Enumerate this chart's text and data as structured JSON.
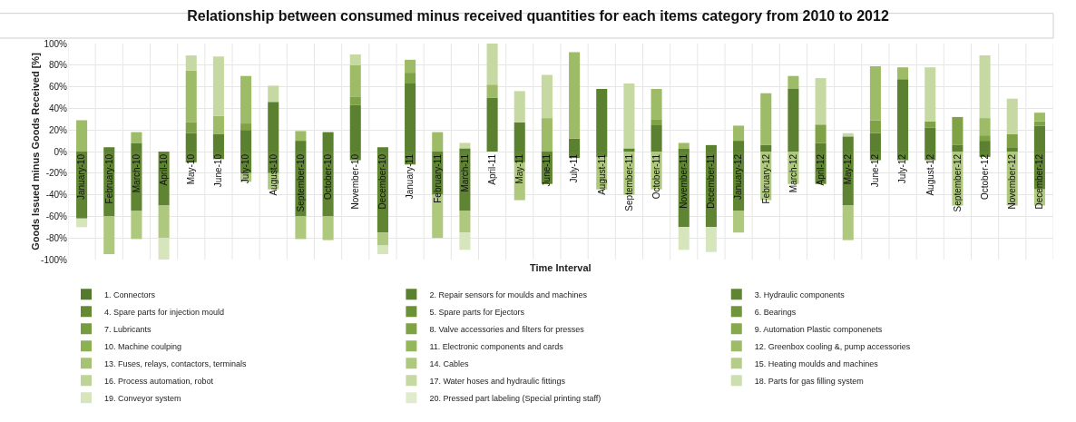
{
  "chart_data": {
    "type": "bar",
    "stacked": true,
    "title": "Relationship between consumed minus received quantities for each items category from 2010 to 2012",
    "xlabel": "Time Interval",
    "ylabel": "Goods Issued minus Goods Received [%]",
    "categories": [
      "January-10",
      "February-10",
      "March-10",
      "April-10",
      "May-10",
      "June-10",
      "July-10",
      "August-10",
      "September-10",
      "October-10",
      "November-10",
      "December-10",
      "January-11",
      "February-11",
      "March-11",
      "April-11",
      "May-11",
      "June-11",
      "July-11",
      "August-11",
      "September-11",
      "October-11",
      "November-11",
      "December-11",
      "January-12",
      "February-12",
      "March-12",
      "April-12",
      "May-12",
      "June-12",
      "July-12",
      "August-12",
      "September-12",
      "October-12",
      "November-12",
      "December-12"
    ],
    "ylim": [
      -100,
      100
    ],
    "yticks": [
      {
        "value": -100,
        "label": "-100%"
      },
      {
        "value": -80,
        "label": "-80%"
      },
      {
        "value": -60,
        "label": "-60%"
      },
      {
        "value": -40,
        "label": "-40%"
      },
      {
        "value": -20,
        "label": "-20%"
      },
      {
        "value": 0,
        "label": "0%"
      },
      {
        "value": 20,
        "label": "20%"
      },
      {
        "value": 40,
        "label": "40%"
      },
      {
        "value": 60,
        "label": "60%"
      },
      {
        "value": 80,
        "label": "80%"
      },
      {
        "value": 100,
        "label": "100%"
      }
    ],
    "grid": true,
    "legend": "bottom",
    "series": [
      {
        "name": "1. Connectors",
        "color": "#557a2e",
        "values": [
          null,
          null,
          null,
          null,
          null,
          null,
          null,
          null,
          null,
          null,
          null,
          null,
          null,
          null,
          null,
          null,
          null,
          null,
          null,
          null,
          null,
          null,
          null,
          null,
          null,
          null,
          null,
          null,
          null,
          null,
          null,
          null,
          null,
          null,
          null,
          null
        ]
      },
      {
        "name": "2. Repair sensors for moulds and machines",
        "color": "#5a8030",
        "values": [
          null,
          4,
          8,
          null,
          17,
          16,
          20,
          46,
          10,
          18,
          43,
          4,
          63,
          null,
          3,
          50,
          27,
          null,
          12,
          58,
          3,
          25,
          3,
          6,
          10,
          6,
          58,
          8,
          14,
          17,
          67,
          22,
          6,
          10,
          4,
          24
        ]
      },
      {
        "name": "3. Hydraulic components",
        "color": "#5f8532",
        "values": [
          -62,
          -60,
          -55,
          -50,
          -10,
          -7,
          -20,
          -20,
          -60,
          -60,
          -8,
          -75,
          -12,
          -40,
          -55,
          null,
          -10,
          -30,
          -6,
          -5,
          null,
          null,
          -70,
          -70,
          -55,
          null,
          null,
          -30,
          -50,
          -8,
          -8,
          -8,
          null,
          -5,
          null,
          -35
        ]
      },
      {
        "name": "4. Spare parts for injection mould",
        "color": "#648a35",
        "values": [
          null,
          null,
          null,
          null,
          null,
          null,
          null,
          null,
          null,
          null,
          null,
          null,
          null,
          null,
          null,
          null,
          null,
          null,
          null,
          null,
          null,
          null,
          null,
          null,
          null,
          null,
          null,
          null,
          null,
          null,
          null,
          null,
          null,
          null,
          null,
          null
        ]
      },
      {
        "name": "5. Spare parts for Ejectors",
        "color": "#6a9038",
        "values": [
          null,
          null,
          null,
          null,
          null,
          null,
          null,
          null,
          null,
          null,
          null,
          null,
          null,
          null,
          null,
          null,
          null,
          null,
          null,
          null,
          null,
          null,
          null,
          null,
          null,
          null,
          null,
          null,
          null,
          null,
          null,
          null,
          null,
          null,
          null,
          null
        ]
      },
      {
        "name": "6. Bearings",
        "color": "#70953c",
        "values": [
          null,
          null,
          null,
          null,
          null,
          null,
          null,
          null,
          null,
          null,
          null,
          null,
          null,
          null,
          null,
          null,
          null,
          null,
          null,
          null,
          null,
          null,
          null,
          null,
          null,
          null,
          null,
          null,
          null,
          null,
          null,
          null,
          null,
          null,
          null,
          null
        ]
      },
      {
        "name": "7. Lubricants",
        "color": "#779b40",
        "values": [
          null,
          null,
          null,
          null,
          null,
          null,
          null,
          null,
          null,
          null,
          null,
          null,
          null,
          null,
          null,
          null,
          null,
          null,
          null,
          null,
          null,
          null,
          null,
          null,
          null,
          null,
          null,
          null,
          null,
          null,
          null,
          null,
          null,
          null,
          null,
          null
        ]
      },
      {
        "name": "8. Valve accessories and filters for presses",
        "color": "#7ea245",
        "values": [
          null,
          null,
          null,
          null,
          10,
          null,
          6,
          null,
          null,
          null,
          8,
          null,
          10,
          null,
          null,
          null,
          null,
          null,
          null,
          null,
          null,
          5,
          null,
          null,
          null,
          null,
          null,
          17,
          null,
          12,
          null,
          6,
          26,
          5,
          12,
          4
        ]
      },
      {
        "name": "9. Automation Plastic componenets",
        "color": "#86a94c",
        "values": [
          null,
          null,
          null,
          null,
          null,
          null,
          null,
          null,
          null,
          null,
          null,
          null,
          null,
          null,
          null,
          null,
          null,
          null,
          null,
          null,
          null,
          null,
          null,
          null,
          null,
          null,
          null,
          null,
          null,
          null,
          null,
          null,
          null,
          null,
          null,
          null
        ]
      },
      {
        "name": "10. Machine coulping",
        "color": "#8eb054",
        "values": [
          null,
          null,
          null,
          null,
          null,
          null,
          null,
          null,
          null,
          null,
          null,
          null,
          null,
          null,
          null,
          null,
          null,
          null,
          null,
          null,
          null,
          null,
          null,
          null,
          null,
          null,
          null,
          null,
          null,
          null,
          null,
          null,
          null,
          null,
          null,
          null
        ]
      },
      {
        "name": "11. Electronic components and cards",
        "color": "#96b65d",
        "values": [
          null,
          null,
          null,
          null,
          null,
          null,
          null,
          null,
          null,
          null,
          null,
          null,
          null,
          null,
          null,
          null,
          null,
          null,
          null,
          null,
          null,
          null,
          null,
          null,
          null,
          null,
          null,
          null,
          null,
          null,
          null,
          null,
          null,
          null,
          null,
          null
        ]
      },
      {
        "name": "12. Greenbox cooling &, pump accessories",
        "color": "#9ebc67",
        "values": [
          29,
          null,
          10,
          null,
          48,
          17,
          44,
          null,
          9,
          null,
          29,
          null,
          12,
          18,
          null,
          12,
          null,
          31,
          80,
          null,
          null,
          28,
          5,
          null,
          14,
          48,
          12,
          null,
          null,
          50,
          11,
          null,
          null,
          16,
          null,
          8
        ]
      },
      {
        "name": "13. Fuses, relays, contactors, terminals",
        "color": "#a6c272",
        "values": [
          null,
          null,
          null,
          null,
          null,
          null,
          null,
          null,
          null,
          null,
          null,
          null,
          null,
          null,
          null,
          null,
          null,
          null,
          null,
          null,
          null,
          null,
          null,
          null,
          null,
          null,
          null,
          null,
          null,
          null,
          null,
          null,
          null,
          null,
          null,
          null
        ]
      },
      {
        "name": "14. Cables",
        "color": "#aec87d",
        "values": [
          null,
          -35,
          -26,
          -30,
          null,
          null,
          -8,
          -15,
          -21,
          -22,
          null,
          -12,
          null,
          -40,
          -20,
          null,
          -35,
          null,
          null,
          -30,
          -40,
          -35,
          null,
          null,
          -20,
          -45,
          -30,
          null,
          -32,
          null,
          null,
          null,
          -50,
          null,
          -50,
          -15
        ]
      },
      {
        "name": "15. Heating moulds and machines",
        "color": "#b6cd89",
        "values": [
          null,
          null,
          null,
          null,
          null,
          null,
          null,
          null,
          null,
          null,
          null,
          null,
          null,
          null,
          null,
          null,
          null,
          null,
          null,
          null,
          null,
          null,
          null,
          null,
          null,
          null,
          null,
          null,
          null,
          null,
          null,
          null,
          null,
          null,
          null,
          null
        ]
      },
      {
        "name": "16. Process automation, robot",
        "color": "#bed395",
        "values": [
          null,
          null,
          null,
          null,
          null,
          null,
          null,
          null,
          null,
          null,
          null,
          null,
          null,
          null,
          null,
          null,
          null,
          null,
          null,
          null,
          null,
          null,
          null,
          null,
          null,
          null,
          null,
          null,
          null,
          null,
          null,
          null,
          null,
          null,
          null,
          null
        ]
      },
      {
        "name": "17. Water hoses and hydraulic fittings",
        "color": "#c6d9a2",
        "values": [
          null,
          null,
          null,
          null,
          14,
          55,
          null,
          15,
          null,
          null,
          10,
          null,
          null,
          null,
          5,
          38,
          29,
          40,
          null,
          null,
          60,
          null,
          null,
          null,
          null,
          null,
          null,
          43,
          3,
          null,
          null,
          50,
          null,
          58,
          33,
          null
        ]
      },
      {
        "name": "18. Parts for gas filling system",
        "color": "#cedfaf",
        "values": [
          null,
          null,
          null,
          null,
          null,
          null,
          null,
          null,
          null,
          null,
          null,
          null,
          null,
          null,
          null,
          null,
          null,
          null,
          null,
          null,
          null,
          null,
          null,
          null,
          null,
          null,
          null,
          null,
          null,
          null,
          null,
          null,
          null,
          null,
          null,
          null
        ]
      },
      {
        "name": "19. Conveyor system",
        "color": "#d7e5bd",
        "values": [
          -8,
          null,
          null,
          -20,
          null,
          null,
          null,
          null,
          null,
          null,
          null,
          -8,
          null,
          null,
          -16,
          null,
          null,
          null,
          null,
          null,
          null,
          null,
          -21,
          -23,
          null,
          null,
          null,
          null,
          null,
          null,
          null,
          null,
          null,
          null,
          null,
          null
        ]
      },
      {
        "name": "20. Pressed part labeling (Special printing staff)",
        "color": "#e0ebcc",
        "values": [
          null,
          null,
          null,
          null,
          null,
          null,
          null,
          null,
          null,
          null,
          null,
          null,
          null,
          null,
          null,
          null,
          null,
          null,
          null,
          null,
          null,
          null,
          null,
          null,
          null,
          null,
          null,
          null,
          null,
          null,
          null,
          null,
          null,
          null,
          null,
          null
        ]
      }
    ]
  }
}
